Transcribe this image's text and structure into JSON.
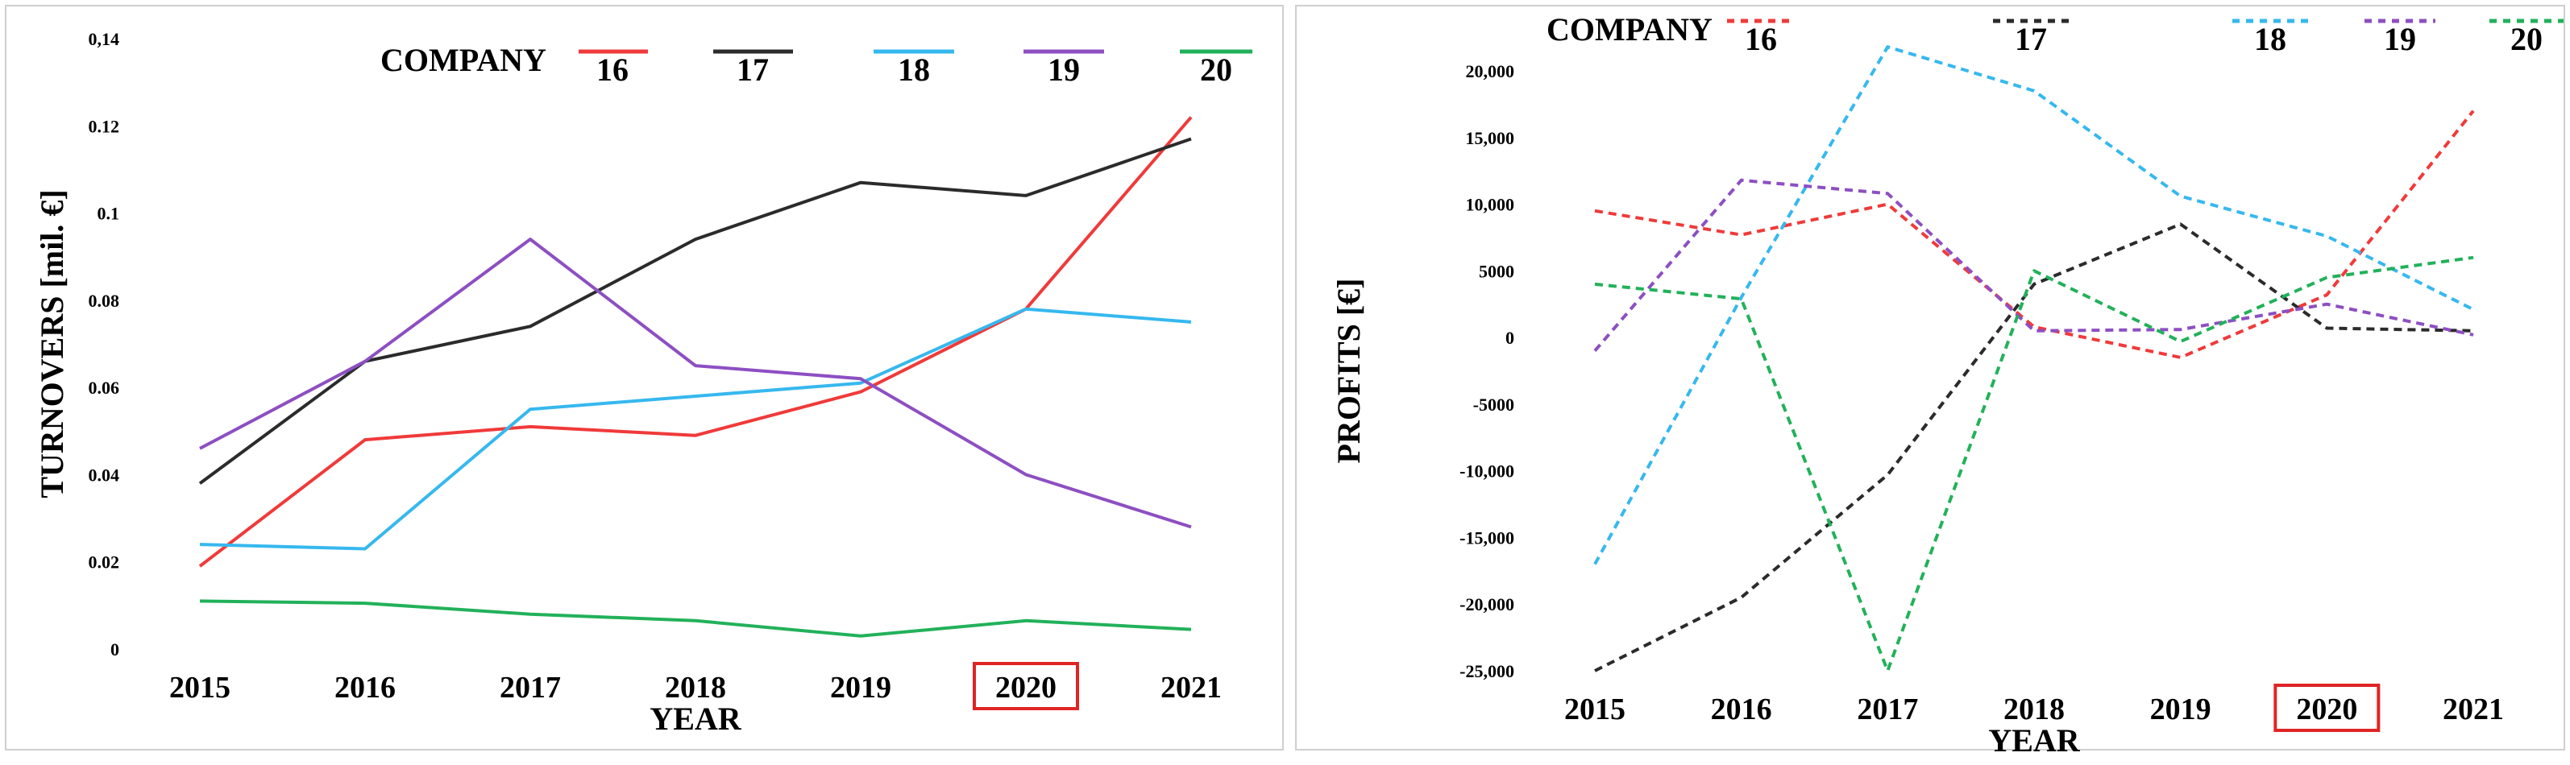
{
  "chart_data": [
    {
      "type": "line",
      "xlabel": "YEAR",
      "ylabel": "TURNOVERS [mil. €]",
      "x": [
        "2015",
        "2016",
        "2017",
        "2018",
        "2019",
        "2020",
        "2021"
      ],
      "highlight_x": "2020",
      "ylim": [
        0,
        0.14
      ],
      "yticks": [
        "0",
        "0.02",
        "0.04",
        "0.06",
        "0.08",
        "0.1",
        "0.12",
        "0,14"
      ],
      "grid": false,
      "legend": {
        "title": "COMPANY",
        "placement": "top",
        "style": "solid"
      },
      "series": [
        {
          "name": "16",
          "color": "#f03a3a",
          "values": [
            0.019,
            0.048,
            0.051,
            0.049,
            0.059,
            0.078,
            0.122
          ]
        },
        {
          "name": "17",
          "color": "#2b2b2b",
          "values": [
            0.038,
            0.066,
            0.074,
            0.094,
            0.107,
            0.104,
            0.117
          ]
        },
        {
          "name": "18",
          "color": "#36b8ee",
          "values": [
            0.024,
            0.023,
            0.055,
            0.058,
            0.061,
            0.078,
            0.075
          ]
        },
        {
          "name": "19",
          "color": "#8d4fc2",
          "values": [
            0.046,
            0.066,
            0.094,
            0.065,
            0.062,
            0.04,
            0.028
          ]
        },
        {
          "name": "20",
          "color": "#22b15a",
          "values": [
            0.011,
            0.0105,
            0.008,
            0.0065,
            0.003,
            0.0065,
            0.0045
          ]
        }
      ]
    },
    {
      "type": "line",
      "xlabel": "YEAR",
      "ylabel": "PROFITS [€]",
      "x": [
        "2015",
        "2016",
        "2017",
        "2018",
        "2019",
        "2020",
        "2021"
      ],
      "highlight_x": "2020",
      "ylim": [
        -25000,
        20000
      ],
      "yticks": [
        "-25,000",
        "-20,000",
        "-15,000",
        "-10,000",
        "-5000",
        "0",
        "5000",
        "10,000",
        "15,000",
        "20,000"
      ],
      "grid": false,
      "legend": {
        "title": "COMPANY",
        "placement": "top",
        "style": "dashed"
      },
      "series": [
        {
          "name": "16",
          "color": "#f03a3a",
          "values": [
            9500,
            7700,
            10000,
            800,
            -1500,
            3200,
            17000
          ]
        },
        {
          "name": "17",
          "color": "#2b2b2b",
          "values": [
            -25000,
            -19500,
            -10300,
            4000,
            8500,
            700,
            500
          ]
        },
        {
          "name": "18",
          "color": "#36b8ee",
          "values": [
            -17000,
            3000,
            21800,
            18500,
            10600,
            7600,
            2100
          ]
        },
        {
          "name": "19",
          "color": "#8d4fc2",
          "values": [
            -1000,
            11800,
            10800,
            500,
            600,
            2500,
            200
          ]
        },
        {
          "name": "20",
          "color": "#22b15a",
          "values": [
            4000,
            2900,
            -25000,
            5000,
            -300,
            4500,
            6000
          ]
        }
      ]
    }
  ]
}
